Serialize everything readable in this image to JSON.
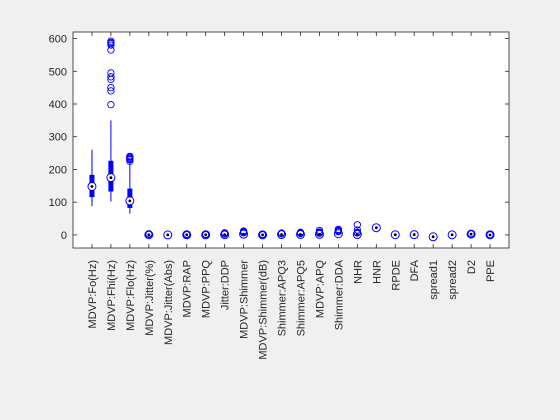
{
  "colors": {
    "figure_bg": "#f0f0f0",
    "axes_bg": "#ffffff",
    "axis": "#262626",
    "box": "#0000ff",
    "outlier": "#0000ff"
  },
  "chart_data": {
    "type": "boxplot",
    "title": "",
    "xlabel": "",
    "ylabel": "",
    "ylim": [
      -40,
      620
    ],
    "yticks": [
      0,
      100,
      200,
      300,
      400,
      500,
      600
    ],
    "grid": false,
    "legend": "none",
    "notes": "compact boxplot style: thick box, circle median marker with dot, thin whiskers, open-circle outliers",
    "categories": [
      "MDVP:Fo(Hz)",
      "MDVP:Fhi(Hz)",
      "MDVP:Flo(Hz)",
      "MDVP:Jitter(%)",
      "MDVP:Jitter(Abs)",
      "MDVP:RAP",
      "MDVP:PPQ",
      "Jitter:DDP",
      "MDVP:Shimmer",
      "MDVP:Shimmer(dB)",
      "Shimmer:APQ3",
      "Shimmer:APQ5",
      "MDVP:APQ",
      "Shimmer:DDA",
      "NHR",
      "HNR",
      "RPDE",
      "DFA",
      "spread1",
      "spread2",
      "D2",
      "PPE"
    ],
    "series": [
      {
        "min": 88,
        "q1": 117,
        "median": 148,
        "q3": 182,
        "max": 260,
        "outliers": []
      },
      {
        "min": 102,
        "q1": 134,
        "median": 175,
        "q3": 225,
        "max": 350,
        "outliers": [
          398,
          440,
          450,
          475,
          483,
          495,
          565,
          580,
          585,
          588,
          592
        ]
      },
      {
        "min": 65,
        "q1": 84,
        "median": 104,
        "q3": 140,
        "max": 220,
        "outliers": [
          225,
          230,
          232,
          235,
          238,
          240
        ]
      },
      {
        "min": 0,
        "q1": 0.3,
        "median": 0.5,
        "q3": 0.7,
        "max": 1.3,
        "outliers": [
          1.5,
          2,
          2.5,
          3.3
        ]
      },
      {
        "min": 0,
        "q1": 0,
        "median": 0,
        "q3": 0,
        "max": 0,
        "outliers": []
      },
      {
        "min": 0,
        "q1": 0.2,
        "median": 0.3,
        "q3": 0.4,
        "max": 0.7,
        "outliers": [
          0.8,
          1,
          1.5,
          2.1
        ]
      },
      {
        "min": 0,
        "q1": 0.2,
        "median": 0.3,
        "q3": 0.4,
        "max": 0.8,
        "outliers": [
          0.9,
          1.2,
          1.6,
          1.9
        ]
      },
      {
        "min": 0.2,
        "q1": 0.5,
        "median": 0.8,
        "q3": 1.2,
        "max": 2,
        "outliers": [
          2.5,
          3.5,
          4.5,
          6.4
        ]
      },
      {
        "min": 1,
        "q1": 1.7,
        "median": 2.3,
        "q3": 3.8,
        "max": 6,
        "outliers": [
          6.5,
          8,
          10,
          11.9
        ]
      },
      {
        "min": 0.1,
        "q1": 0.2,
        "median": 0.2,
        "q3": 0.3,
        "max": 0.5,
        "outliers": [
          0.6,
          0.8,
          1,
          1.3
        ]
      },
      {
        "min": 0.5,
        "q1": 0.9,
        "median": 1.2,
        "q3": 1.8,
        "max": 3.2,
        "outliers": [
          3.5,
          4,
          5,
          5.6
        ]
      },
      {
        "min": 0.6,
        "q1": 1,
        "median": 1.4,
        "q3": 2.2,
        "max": 3.8,
        "outliers": [
          4,
          5,
          6,
          7.9
        ]
      },
      {
        "min": 0.7,
        "q1": 1.4,
        "median": 1.8,
        "q3": 2.7,
        "max": 4.6,
        "outliers": [
          5,
          7,
          9,
          13.8
        ]
      },
      {
        "min": 1.4,
        "q1": 2.7,
        "median": 3.6,
        "q3": 5.5,
        "max": 9.5,
        "outliers": [
          10,
          12,
          14,
          16.9
        ]
      },
      {
        "min": 0,
        "q1": 0.6,
        "median": 1.2,
        "q3": 2.6,
        "max": 5,
        "outliers": [
          6,
          8,
          15,
          31
        ]
      },
      {
        "min": 8.4,
        "q1": 19,
        "median": 22,
        "q3": 25,
        "max": 33,
        "outliers": []
      },
      {
        "min": 0.26,
        "q1": 0.42,
        "median": 0.5,
        "q3": 0.59,
        "max": 0.69,
        "outliers": []
      },
      {
        "min": 0.57,
        "q1": 0.67,
        "median": 0.72,
        "q3": 0.76,
        "max": 0.83,
        "outliers": []
      },
      {
        "min": -7.9,
        "q1": -6.4,
        "median": -5.7,
        "q3": -5,
        "max": -2.4,
        "outliers": []
      },
      {
        "min": 0.01,
        "q1": 0.17,
        "median": 0.22,
        "q3": 0.28,
        "max": 0.45,
        "outliers": []
      },
      {
        "min": 1.4,
        "q1": 2.1,
        "median": 2.4,
        "q3": 2.6,
        "max": 3.3,
        "outliers": [
          3.4,
          3.5,
          3.7
        ]
      },
      {
        "min": 0.04,
        "q1": 0.14,
        "median": 0.19,
        "q3": 0.25,
        "max": 0.45,
        "outliers": [
          0.5,
          0.53
        ]
      }
    ]
  }
}
